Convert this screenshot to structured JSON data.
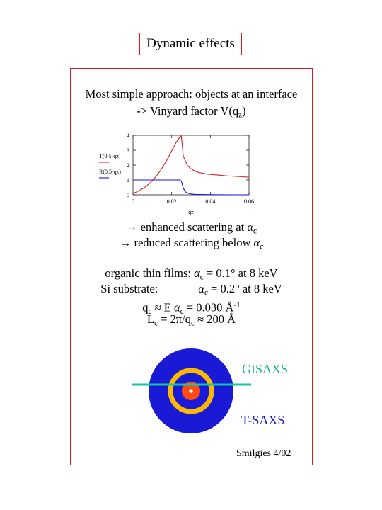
{
  "title": "Dynamic effects",
  "intro": {
    "line1": "Most simple approach: objects at an interface",
    "line2_prefix": "-> Vinyard factor V(q",
    "line2_sub": "z",
    "line2_suffix": ")"
  },
  "chart_data": {
    "type": "line",
    "xlabel": "qz",
    "xlim": [
      0,
      0.06
    ],
    "ylim": [
      0,
      4
    ],
    "x_ticks": [
      "0",
      "0.02",
      "0.04",
      "0.06"
    ],
    "y_ticks": [
      "0",
      "1",
      "2",
      "3",
      "4"
    ],
    "grid": false,
    "legend_position": "left",
    "series": [
      {
        "name": "T(0.5·qz)",
        "color": "#d81e1e",
        "x": [
          0,
          0.002,
          0.004,
          0.006,
          0.008,
          0.01,
          0.012,
          0.014,
          0.016,
          0.018,
          0.02,
          0.022,
          0.024,
          0.025,
          0.026,
          0.028,
          0.03,
          0.032,
          0.034,
          0.036,
          0.038,
          0.04,
          0.044,
          0.048,
          0.052,
          0.056,
          0.06
        ],
        "y": [
          0.1,
          0.2,
          0.34,
          0.5,
          0.7,
          0.95,
          1.25,
          1.6,
          2.0,
          2.45,
          2.95,
          3.45,
          3.85,
          3.95,
          2.6,
          2.0,
          1.75,
          1.6,
          1.5,
          1.45,
          1.4,
          1.37,
          1.33,
          1.28,
          1.25,
          1.22,
          1.18
        ]
      },
      {
        "name": "R(0.5·qz)",
        "color": "#1414d6",
        "x": [
          0,
          0.01,
          0.02,
          0.024,
          0.025,
          0.026,
          0.027,
          0.028,
          0.03,
          0.032,
          0.035,
          0.04,
          0.05,
          0.06
        ],
        "y": [
          1.0,
          1.0,
          1.0,
          1.0,
          0.92,
          0.45,
          0.22,
          0.12,
          0.06,
          0.03,
          0.02,
          0.01,
          0.0,
          0.0
        ]
      }
    ]
  },
  "effects": {
    "line1_text": "→ enhanced scattering at ",
    "line2_text": "→ reduced scattering below ",
    "alpha": "α",
    "sub_c": "c"
  },
  "params": {
    "organic_prefix": "organic thin films: ",
    "organic_value": " = 0.1° at 8 keV",
    "si_prefix": "Si substrate:",
    "si_value": " = 0.2° at 8 keV",
    "q_symbol": "q",
    "q_mid": " ≈ E ",
    "q_value": " = 0.030 Å",
    "q_exp": "-1",
    "l_symbol": "L",
    "l_mid": " = 2π/q",
    "l_value": " ≈ 200 Å",
    "alpha": "α",
    "sub_c": "c"
  },
  "diagram": {
    "label_gisaxs": "GISAXS",
    "label_tsaxs": "T-SAXS",
    "colors": {
      "outer_disc": "#1a1ad6",
      "ring": "#ffb800",
      "center": "#ff4a14",
      "center_dot": "#ffffff",
      "line": "#12c8a2"
    }
  },
  "credit": "Smilgies 4/02"
}
